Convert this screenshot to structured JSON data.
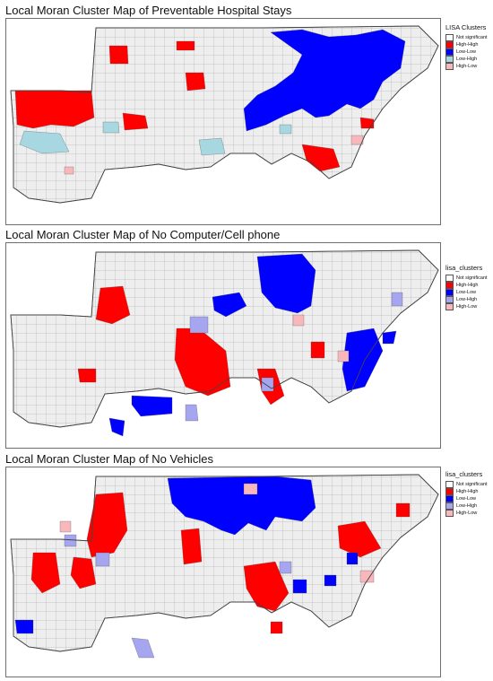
{
  "colors": {
    "not_significant": "#eeeeee",
    "high_high": "#ff0000",
    "low_low": "#0000ff",
    "low_high_dark": "#a7d7e0",
    "low_high_light": "#a5a5f0",
    "high_low": "#f7b7bb",
    "border": "#555555"
  },
  "panels": [
    {
      "title": "Local Moran Cluster Map of Preventable Hospital Stays",
      "legend": {
        "title": "LISA Clusters",
        "items": [
          {
            "label": "Not significant",
            "color": "#ffffff"
          },
          {
            "label": "High-High",
            "color": "#ff0000"
          },
          {
            "label": "Low-Low",
            "color": "#0000ff"
          },
          {
            "label": "Low-High",
            "color": "#a7d7e0"
          },
          {
            "label": "High-Low",
            "color": "#f7b7bb"
          }
        ]
      }
    },
    {
      "title": "Local Moran Cluster Map of No Computer/Cell phone",
      "legend": {
        "title": "lisa_clusters",
        "items": [
          {
            "label": "Not significant",
            "color": "#ffffff"
          },
          {
            "label": "High-High",
            "color": "#ff0000"
          },
          {
            "label": "Low-Low",
            "color": "#0000ff"
          },
          {
            "label": "Low-High",
            "color": "#a5a5f0"
          },
          {
            "label": "High-Low",
            "color": "#f7b7bb"
          }
        ]
      }
    },
    {
      "title": "Local Moran Cluster Map of No Vehicles",
      "legend": {
        "title": "lisa_clusters",
        "items": [
          {
            "label": "Not significant",
            "color": "#ffffff"
          },
          {
            "label": "High-High",
            "color": "#ff0000"
          },
          {
            "label": "Low-Low",
            "color": "#0000ff"
          },
          {
            "label": "Low-High",
            "color": "#a5a5f0"
          },
          {
            "label": "High-Low",
            "color": "#f7b7bb"
          }
        ]
      }
    }
  ]
}
